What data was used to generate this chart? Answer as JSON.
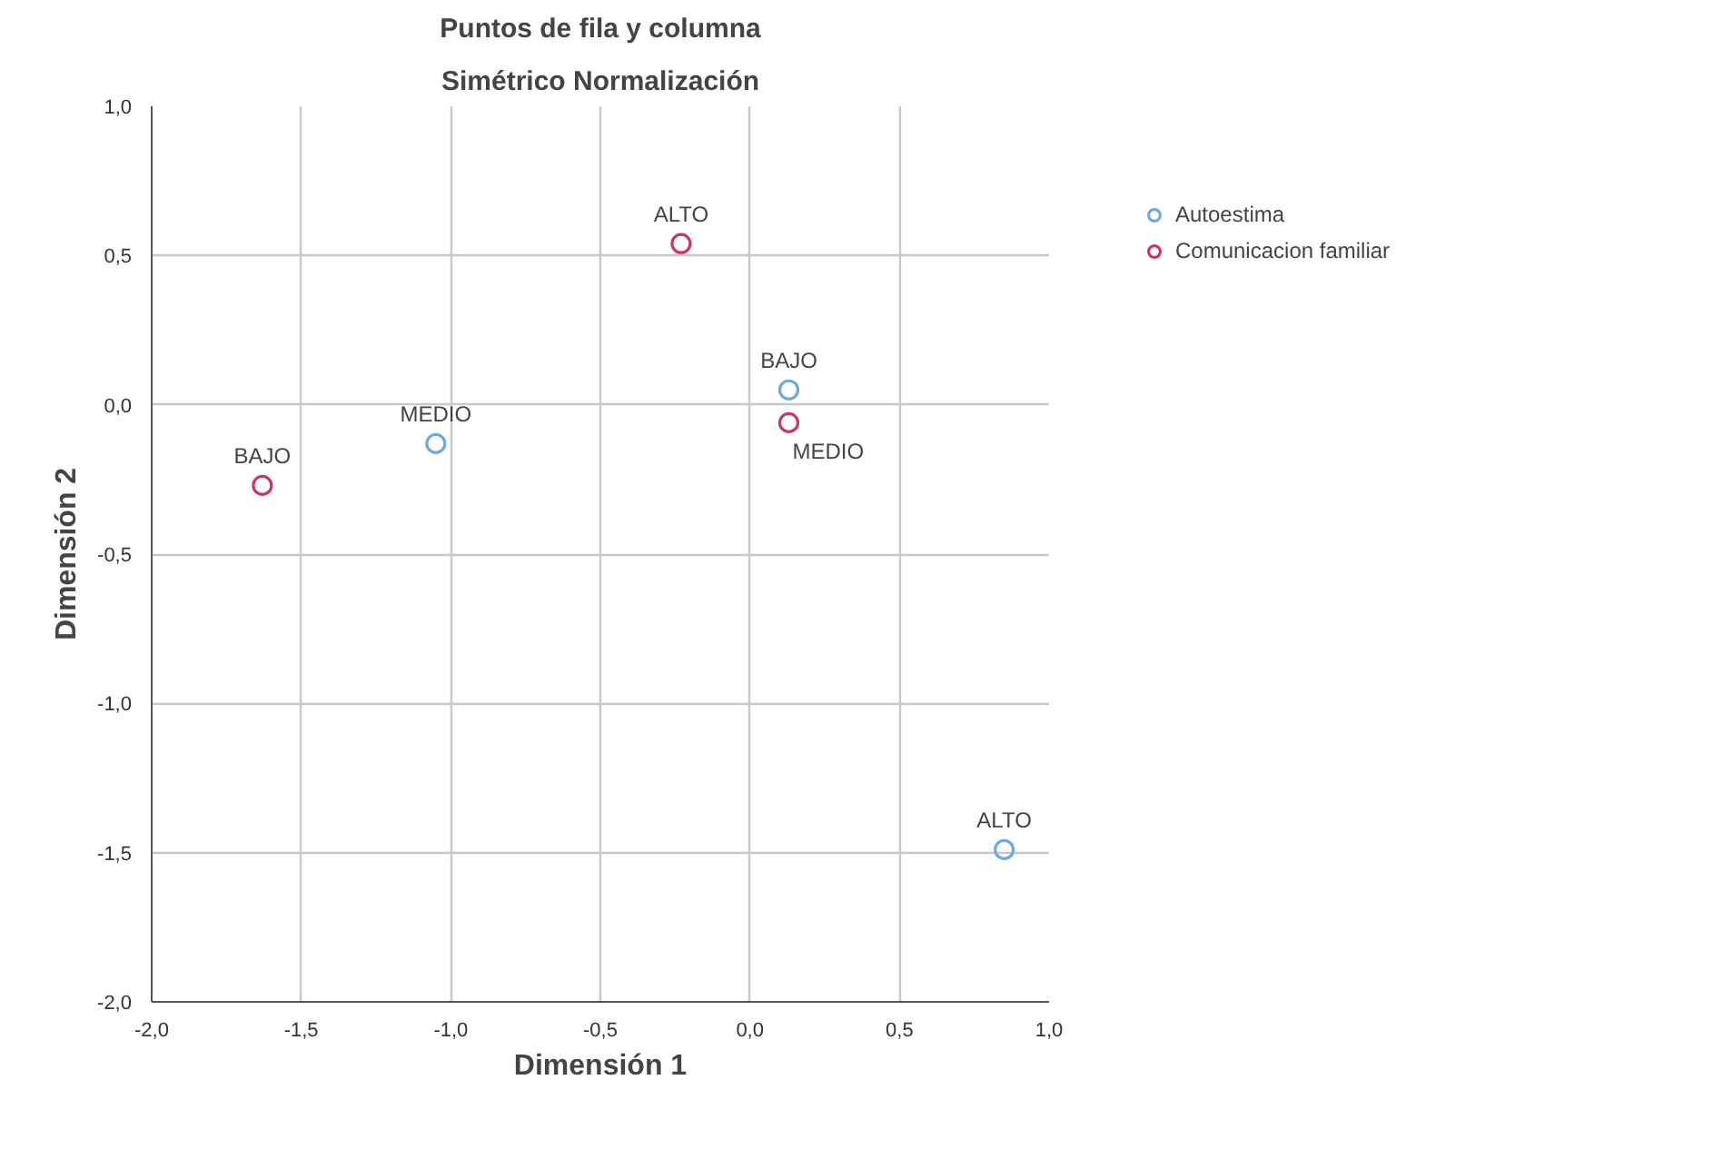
{
  "chart_data": {
    "type": "scatter",
    "title": "Puntos de fila y columna",
    "subtitle": "Simétrico Normalización",
    "xlabel": "Dimensión 1",
    "ylabel": "Dimensión 2",
    "xlim": [
      -2.0,
      1.0
    ],
    "ylim": [
      -2.0,
      1.0
    ],
    "xticks": [
      {
        "value": -2.0,
        "label": "-2,0"
      },
      {
        "value": -1.5,
        "label": "-1,5"
      },
      {
        "value": -1.0,
        "label": "-1,0"
      },
      {
        "value": -0.5,
        "label": "-0,5"
      },
      {
        "value": 0.0,
        "label": "0,0"
      },
      {
        "value": 0.5,
        "label": "0,5"
      },
      {
        "value": 1.0,
        "label": "1,0"
      }
    ],
    "yticks": [
      {
        "value": -2.0,
        "label": "-2,0"
      },
      {
        "value": -1.5,
        "label": "-1,5"
      },
      {
        "value": -1.0,
        "label": "-1,0"
      },
      {
        "value": -0.5,
        "label": "-0,5"
      },
      {
        "value": 0.0,
        "label": "0,0"
      },
      {
        "value": 0.5,
        "label": "0,5"
      },
      {
        "value": 1.0,
        "label": "1,0"
      }
    ],
    "grid": true,
    "legend": "top right",
    "marker": "circle",
    "series": [
      {
        "name": "Autoestima",
        "color": "#6fa8dc",
        "x": [
          0.13,
          -1.05,
          0.85
        ],
        "values": [
          0.05,
          -0.13,
          -1.49
        ]
      },
      {
        "name": "Comunicacion familiar",
        "color": "#c8366a",
        "x": [
          -1.63,
          -0.23,
          0.13
        ],
        "values": [
          -0.27,
          0.54,
          -0.06
        ]
      }
    ],
    "annotations": [
      {
        "text": "BAJO",
        "x": 0.13,
        "y": 0.05
      },
      {
        "text": "MEDIO",
        "x": -1.05,
        "y": -0.13
      },
      {
        "text": "ALTO",
        "x": 0.85,
        "y": -1.49
      },
      {
        "text": "BAJO",
        "x": -1.63,
        "y": -0.27
      },
      {
        "text": "ALTO",
        "x": -0.23,
        "y": 0.54
      },
      {
        "text": "MEDIO",
        "x": 0.13,
        "y": -0.06
      }
    ]
  }
}
